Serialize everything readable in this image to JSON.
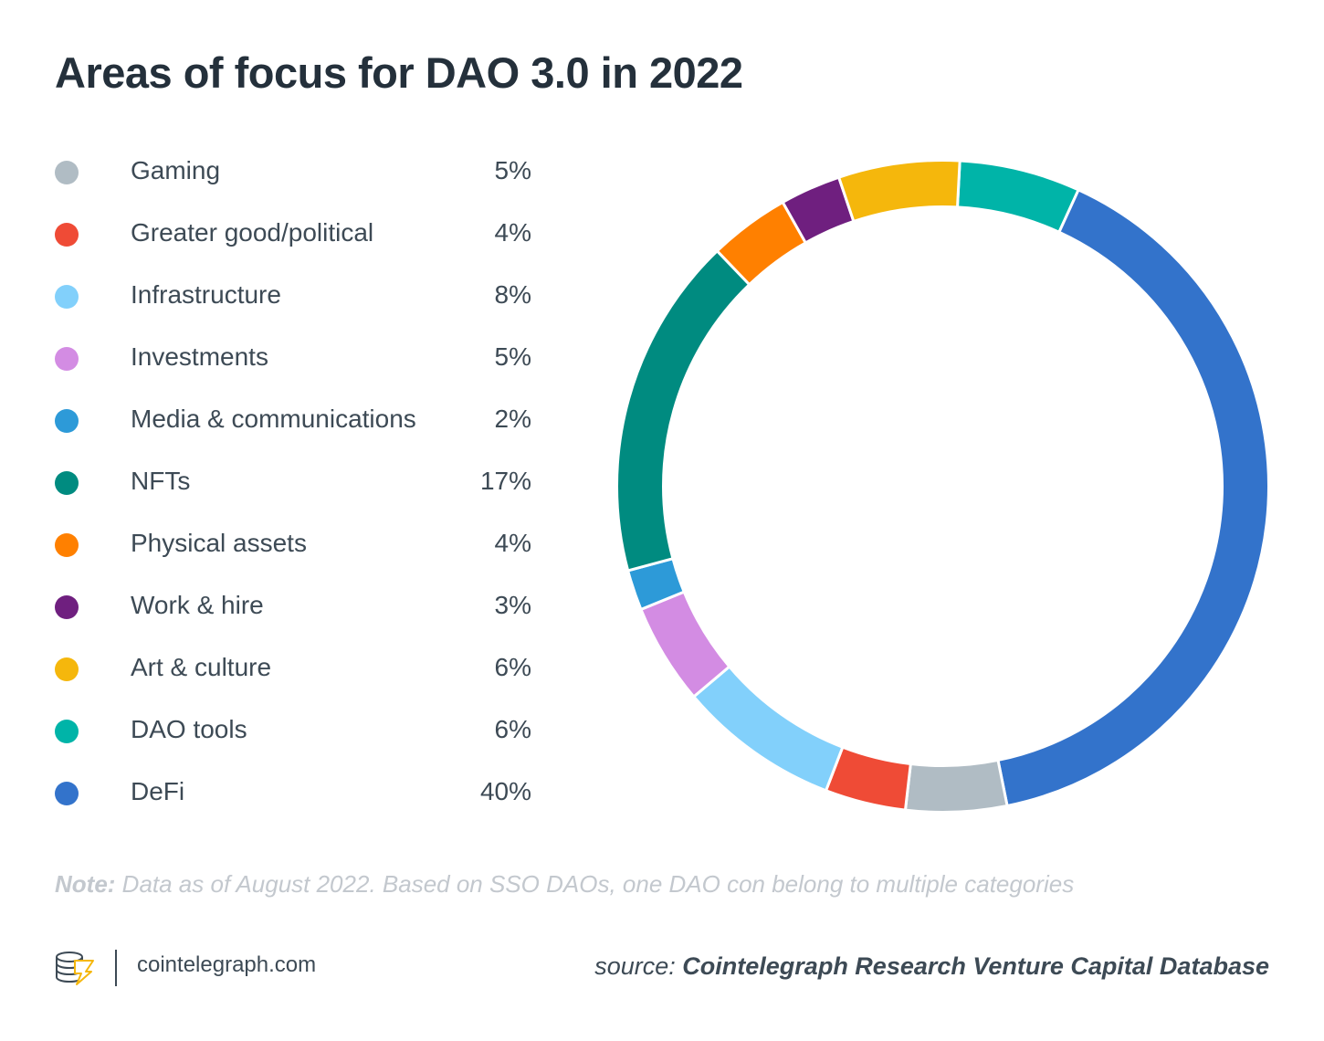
{
  "chart_data": {
    "type": "pie",
    "title": "Areas of focus for DAO 3.0 in 2022",
    "unit": "%",
    "categories": [
      "Gaming",
      "Greater good/political",
      "Infrastructure",
      "Investments",
      "Media & communications",
      "NFTs",
      "Physical assets",
      "Work & hire",
      "Art & culture",
      "DAO tools",
      "DeFi"
    ],
    "values": [
      5,
      4,
      8,
      5,
      2,
      17,
      4,
      3,
      6,
      6,
      40
    ],
    "value_labels": [
      "5%",
      "4%",
      "8%",
      "5%",
      "2%",
      "17%",
      "4%",
      "3%",
      "6%",
      "6%",
      "40%"
    ],
    "colors": [
      "#b0bcc4",
      "#ef4b36",
      "#82d0fb",
      "#d38ce3",
      "#2d9ad8",
      "#008b80",
      "#ff8000",
      "#6f1f7f",
      "#f5b70c",
      "#00b4a8",
      "#3373cb"
    ],
    "legend_position": "left",
    "donut": true
  },
  "note": {
    "label": "Note:",
    "text": " Data as of August 2022. Based on SSO DAOs, one DAO con belong to multiple categories"
  },
  "footer": {
    "site": "cointelegraph.com",
    "source_prefix": "source: ",
    "source_name": "Cointelegraph Research Venture Capital Database"
  }
}
